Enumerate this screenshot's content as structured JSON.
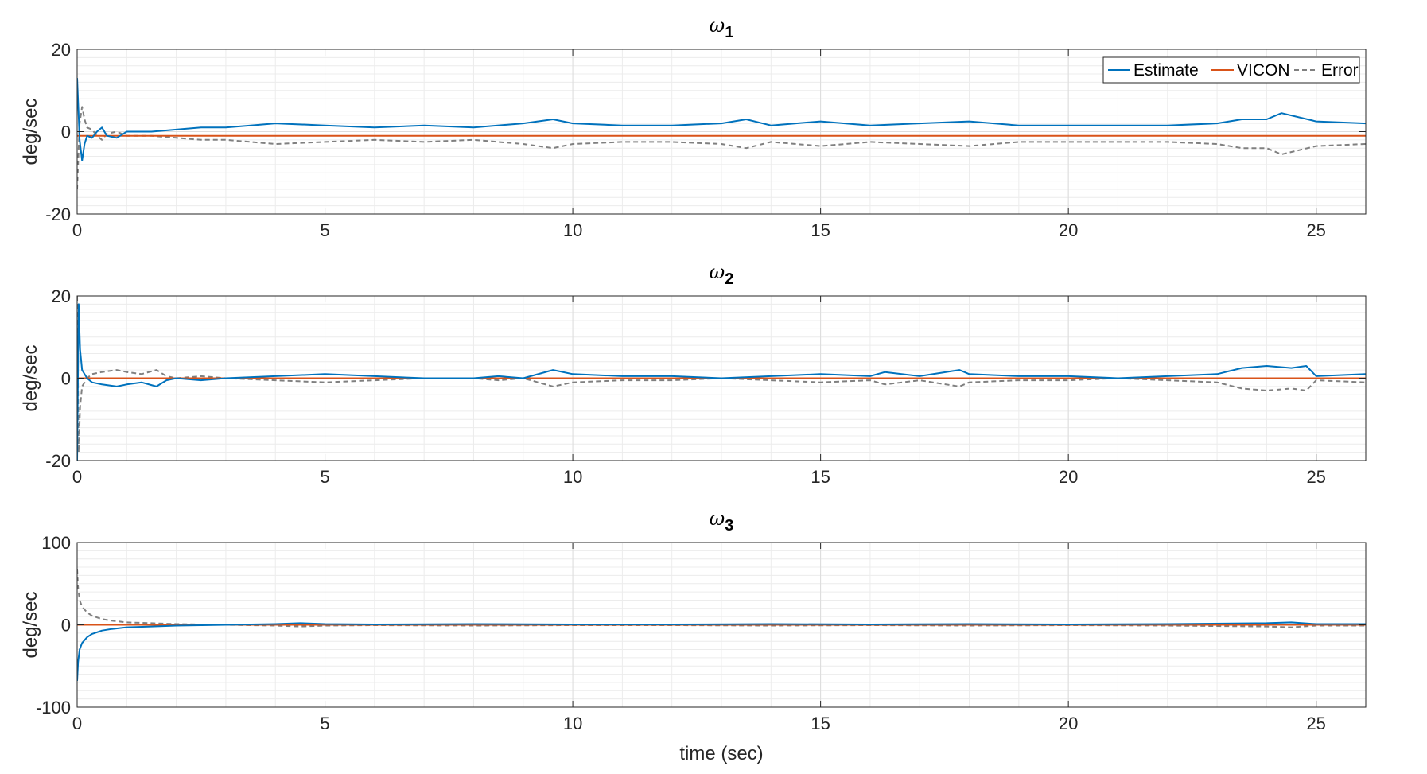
{
  "figure": {
    "xlabel": "time (sec)",
    "legend_position": "top-right",
    "legend_in_subplot": 0
  },
  "chart_data": [
    {
      "type": "line",
      "title_symbol": "ω",
      "title_subscript": "1",
      "ylabel": "deg/sec",
      "xlim": [
        0,
        26
      ],
      "ylim": [
        -20,
        20
      ],
      "xticks": [
        0,
        5,
        10,
        15,
        20,
        25
      ],
      "yticks": [
        -20,
        0,
        20
      ],
      "grid": true,
      "series": [
        {
          "name": "Estimate",
          "color": "#0072BD",
          "dash": "solid",
          "x": [
            0,
            0.05,
            0.1,
            0.15,
            0.2,
            0.3,
            0.4,
            0.5,
            0.6,
            0.8,
            1,
            1.5,
            2,
            2.5,
            3,
            3.5,
            4,
            5,
            6,
            7,
            8,
            9,
            9.6,
            10,
            11,
            12,
            13,
            13.5,
            14,
            15,
            16,
            17,
            18,
            19,
            20,
            21,
            22,
            23,
            23.5,
            24,
            24.3,
            25,
            26
          ],
          "y": [
            13,
            -2,
            -7,
            -3,
            -1,
            -1.5,
            0,
            1,
            -1,
            -1.5,
            0,
            0,
            0.5,
            1,
            1,
            1.5,
            2,
            1.5,
            1,
            1.5,
            1,
            2,
            3,
            2,
            1.5,
            1.5,
            2,
            3,
            1.5,
            2.5,
            1.5,
            2,
            2.5,
            1.5,
            1.5,
            1.5,
            1.5,
            2,
            3,
            3,
            4.5,
            2.5,
            2
          ]
        },
        {
          "name": "VICON",
          "color": "#D95319",
          "dash": "solid",
          "x": [
            0,
            26
          ],
          "y": [
            -1,
            -1
          ]
        },
        {
          "name": "Error",
          "color": "#808080",
          "dash": "dashed",
          "x": [
            0,
            0.05,
            0.1,
            0.15,
            0.2,
            0.3,
            0.4,
            0.5,
            0.6,
            0.8,
            1,
            1.5,
            2,
            2.5,
            3,
            3.5,
            4,
            5,
            6,
            7,
            8,
            9,
            9.6,
            10,
            11,
            12,
            13,
            13.5,
            14,
            15,
            16,
            17,
            18,
            19,
            20,
            21,
            22,
            23,
            23.5,
            24,
            24.3,
            25,
            26
          ],
          "y": [
            -14,
            2,
            6,
            3,
            1,
            0.5,
            -1,
            -2,
            -0.5,
            0,
            -1,
            -1,
            -1.5,
            -2,
            -2,
            -2.5,
            -3,
            -2.5,
            -2,
            -2.5,
            -2,
            -3,
            -4,
            -3,
            -2.5,
            -2.5,
            -3,
            -4,
            -2.5,
            -3.5,
            -2.5,
            -3,
            -3.5,
            -2.5,
            -2.5,
            -2.5,
            -2.5,
            -3,
            -4,
            -4,
            -5.5,
            -3.5,
            -3
          ]
        }
      ]
    },
    {
      "type": "line",
      "title_symbol": "ω",
      "title_subscript": "2",
      "ylabel": "deg/sec",
      "xlim": [
        0,
        26
      ],
      "ylim": [
        -20,
        20
      ],
      "xticks": [
        0,
        5,
        10,
        15,
        20,
        25
      ],
      "yticks": [
        -20,
        0,
        20
      ],
      "grid": true,
      "series": [
        {
          "name": "Estimate",
          "color": "#0072BD",
          "dash": "solid",
          "x": [
            0,
            0.03,
            0.06,
            0.1,
            0.15,
            0.2,
            0.3,
            0.5,
            0.8,
            1,
            1.3,
            1.6,
            1.8,
            2,
            2.5,
            3,
            4,
            5,
            6,
            7,
            8,
            8.5,
            9,
            9.6,
            10,
            11,
            12,
            13,
            14,
            15,
            16,
            16.3,
            17,
            17.8,
            18,
            19,
            20,
            21,
            22,
            23,
            23.5,
            24,
            24.5,
            24.8,
            25,
            26
          ],
          "y": [
            -20,
            18,
            7,
            2,
            1,
            0,
            -1,
            -1.5,
            -2,
            -1.5,
            -1,
            -2,
            -0.5,
            0,
            -0.5,
            0,
            0.5,
            1,
            0.5,
            0,
            0,
            0.5,
            0,
            2,
            1,
            0.5,
            0.5,
            0,
            0.5,
            1,
            0.5,
            1.5,
            0.5,
            2,
            1,
            0.5,
            0.5,
            0,
            0.5,
            1,
            2.5,
            3,
            2.5,
            3,
            0.5,
            1
          ]
        },
        {
          "name": "VICON",
          "color": "#D95319",
          "dash": "solid",
          "x": [
            0,
            26
          ],
          "y": [
            0,
            0
          ]
        },
        {
          "name": "Error",
          "color": "#808080",
          "dash": "dashed",
          "x": [
            0,
            0.03,
            0.06,
            0.1,
            0.15,
            0.2,
            0.3,
            0.5,
            0.8,
            1,
            1.3,
            1.6,
            1.8,
            2,
            2.5,
            3,
            4,
            5,
            6,
            7,
            8,
            8.5,
            9,
            9.6,
            10,
            11,
            12,
            13,
            14,
            15,
            16,
            16.3,
            17,
            17.8,
            18,
            19,
            20,
            21,
            22,
            23,
            23.5,
            24,
            24.5,
            24.8,
            25,
            26
          ],
          "y": [
            20,
            -18,
            -7,
            -2,
            -1,
            0,
            1,
            1.5,
            2,
            1.5,
            1,
            2,
            0.5,
            0,
            0.5,
            0,
            -0.5,
            -1,
            -0.5,
            0,
            0,
            -0.5,
            0,
            -2,
            -1,
            -0.5,
            -0.5,
            0,
            -0.5,
            -1,
            -0.5,
            -1.5,
            -0.5,
            -2,
            -1,
            -0.5,
            -0.5,
            0,
            -0.5,
            -1,
            -2.5,
            -3,
            -2.5,
            -3,
            -0.5,
            -1
          ]
        }
      ]
    },
    {
      "type": "line",
      "title_symbol": "ω",
      "title_subscript": "3",
      "ylabel": "deg/sec",
      "xlim": [
        0,
        26
      ],
      "ylim": [
        -100,
        100
      ],
      "xticks": [
        0,
        5,
        10,
        15,
        20,
        25
      ],
      "yticks": [
        -100,
        0,
        100
      ],
      "grid": true,
      "series": [
        {
          "name": "Estimate",
          "color": "#0072BD",
          "dash": "solid",
          "x": [
            0,
            0.02,
            0.05,
            0.1,
            0.2,
            0.3,
            0.5,
            0.7,
            1,
            1.5,
            2,
            2.5,
            3,
            4,
            4.5,
            5,
            6,
            8,
            10,
            12,
            14,
            16,
            18,
            20,
            22,
            24,
            24.5,
            25,
            26
          ],
          "y": [
            -68,
            -45,
            -30,
            -22,
            -15,
            -11,
            -7,
            -5,
            -3,
            -2,
            -1,
            -0.5,
            0,
            1,
            2,
            1,
            0.5,
            1,
            0.5,
            0.5,
            1,
            0.5,
            1,
            0.5,
            1,
            2,
            3,
            1,
            1
          ]
        },
        {
          "name": "VICON",
          "color": "#D95319",
          "dash": "solid",
          "x": [
            0,
            26
          ],
          "y": [
            0,
            0
          ]
        },
        {
          "name": "Error",
          "color": "#808080",
          "dash": "dashed",
          "x": [
            0,
            0.02,
            0.05,
            0.1,
            0.2,
            0.3,
            0.5,
            0.7,
            1,
            1.5,
            2,
            2.5,
            3,
            4,
            4.5,
            5,
            6,
            8,
            10,
            12,
            14,
            16,
            18,
            20,
            22,
            24,
            24.5,
            25,
            26
          ],
          "y": [
            68,
            45,
            30,
            22,
            15,
            11,
            7,
            5,
            3,
            2,
            1,
            0.5,
            0,
            -1,
            -2,
            -1,
            -0.5,
            -1,
            -0.5,
            -0.5,
            -1,
            -0.5,
            -1,
            -0.5,
            -1,
            -2,
            -3,
            -1,
            -1
          ]
        }
      ]
    }
  ]
}
